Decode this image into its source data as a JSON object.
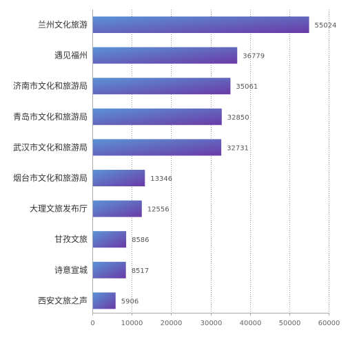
{
  "chart_data": {
    "type": "bar",
    "orientation": "horizontal",
    "title": "",
    "xlabel": "",
    "ylabel": "",
    "categories": [
      "兰州文化旅游",
      "遇见福州",
      "济南市文化和旅游局",
      "青岛市文化和旅游局",
      "武汉市文化和旅游局",
      "烟台市文化和旅游局",
      "大理文旅发布厅",
      "甘孜文旅",
      "诗意宣城",
      "西安文旅之声"
    ],
    "values": [
      55024,
      36779,
      35061,
      32850,
      32731,
      13346,
      12556,
      8586,
      8517,
      5906
    ],
    "value_labels": [
      "55024",
      "36779",
      "35061",
      "32850",
      "32731",
      "13346",
      "12556",
      "8586",
      "8517",
      "5906"
    ],
    "xlim": [
      0,
      60000
    ],
    "x_ticks": [
      0,
      10000,
      20000,
      30000,
      40000,
      50000,
      60000
    ],
    "x_tick_labels": [
      "0",
      "10000",
      "20000",
      "30000",
      "40000",
      "50000",
      "60000"
    ],
    "grid": "vertical dotted",
    "legend": "none",
    "colors": {
      "bar_start": "#5b93d6",
      "bar_end": "#6a3aa6",
      "grid": "#9a9a9a",
      "axis": "#aaaaaa"
    }
  }
}
